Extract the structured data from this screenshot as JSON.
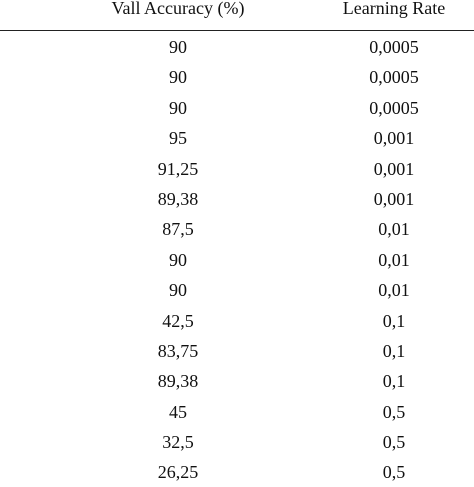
{
  "table": {
    "headers": [
      "Vall Accuracy (%)",
      "Learning Rate"
    ],
    "rows": [
      [
        "90",
        "0,0005"
      ],
      [
        "90",
        "0,0005"
      ],
      [
        "90",
        "0,0005"
      ],
      [
        "95",
        "0,001"
      ],
      [
        "91,25",
        "0,001"
      ],
      [
        "89,38",
        "0,001"
      ],
      [
        "87,5",
        "0,01"
      ],
      [
        "90",
        "0,01"
      ],
      [
        "90",
        "0,01"
      ],
      [
        "42,5",
        "0,1"
      ],
      [
        "83,75",
        "0,1"
      ],
      [
        "89,38",
        "0,1"
      ],
      [
        "45",
        "0,5"
      ],
      [
        "32,5",
        "0,5"
      ],
      [
        "26,25",
        "0,5"
      ]
    ]
  }
}
